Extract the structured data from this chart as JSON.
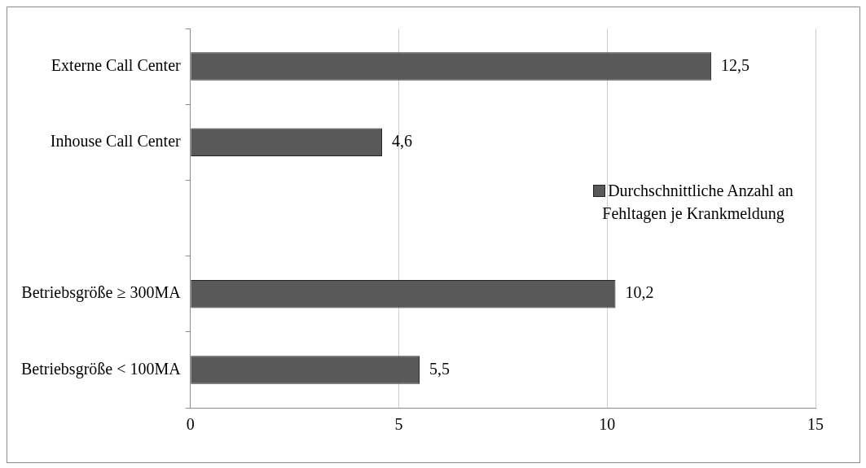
{
  "chart_data": {
    "type": "bar",
    "orientation": "horizontal",
    "categories": [
      "Externe Call Center",
      "Inhouse Call Center",
      null,
      "Betriebsgröße ≥ 300MA",
      "Betriebsgröße < 100MA"
    ],
    "series": [
      {
        "name": "Durchschnittliche Anzahl an Fehltagen je Krankmeldung",
        "color": "#595959",
        "values": [
          12.5,
          4.6,
          null,
          10.2,
          5.5
        ],
        "value_labels": [
          "12,5",
          "4,6",
          null,
          "10,2",
          "5,5"
        ]
      }
    ],
    "xlim": [
      0,
      15
    ],
    "xticks": [
      0,
      5,
      10,
      15
    ],
    "grid": "x",
    "legend": "right"
  }
}
